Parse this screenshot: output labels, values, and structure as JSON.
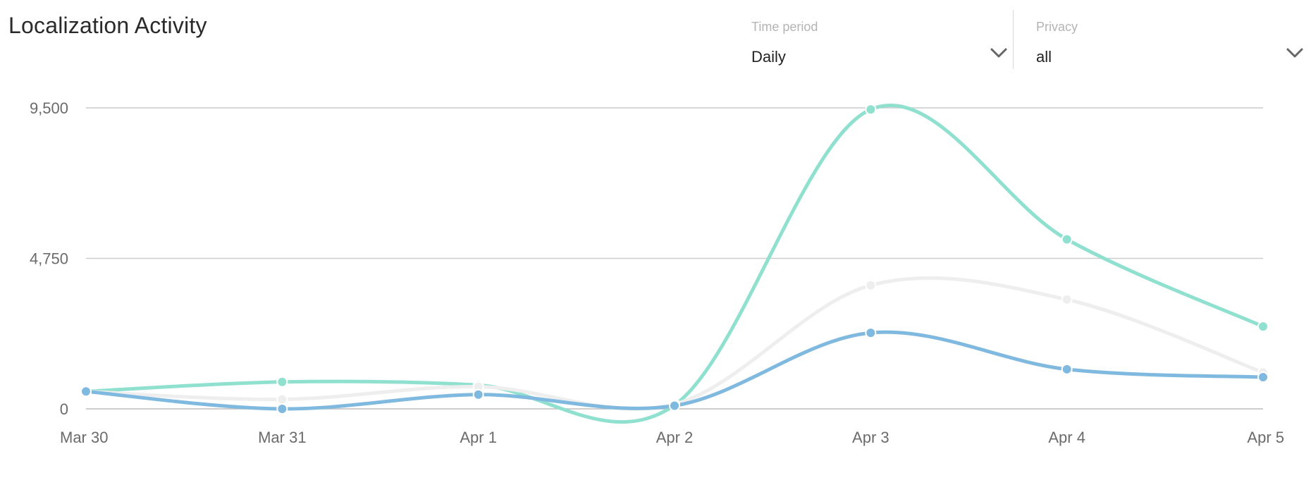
{
  "header": {
    "title": "Localization Activity"
  },
  "filters": {
    "time_period": {
      "label": "Time period",
      "value": "Daily"
    },
    "privacy": {
      "label": "Privacy",
      "value": "all"
    }
  },
  "colors": {
    "teal": "#8fe0cf",
    "blue": "#80b9df",
    "light": "#eeeeee",
    "grid": "#cccccc"
  },
  "chart_data": {
    "type": "line",
    "categories": [
      "Mar 30",
      "Mar 31",
      "Apr 1",
      "Apr 2",
      "Apr 3",
      "Apr 4",
      "Apr 5"
    ],
    "y_ticks": [
      "0",
      "4,750",
      "9,500"
    ],
    "ylim": [
      0,
      9500
    ],
    "grid": true,
    "series": [
      {
        "values": [
          550,
          850,
          750,
          120,
          9450,
          5350,
          2600
        ],
        "color": "#8fe0cf"
      },
      {
        "values": [
          550,
          300,
          700,
          150,
          3900,
          3450,
          1150
        ],
        "color": "#eeeeee"
      },
      {
        "values": [
          550,
          0,
          450,
          100,
          2400,
          1250,
          1000
        ],
        "color": "#80b9df"
      }
    ]
  }
}
